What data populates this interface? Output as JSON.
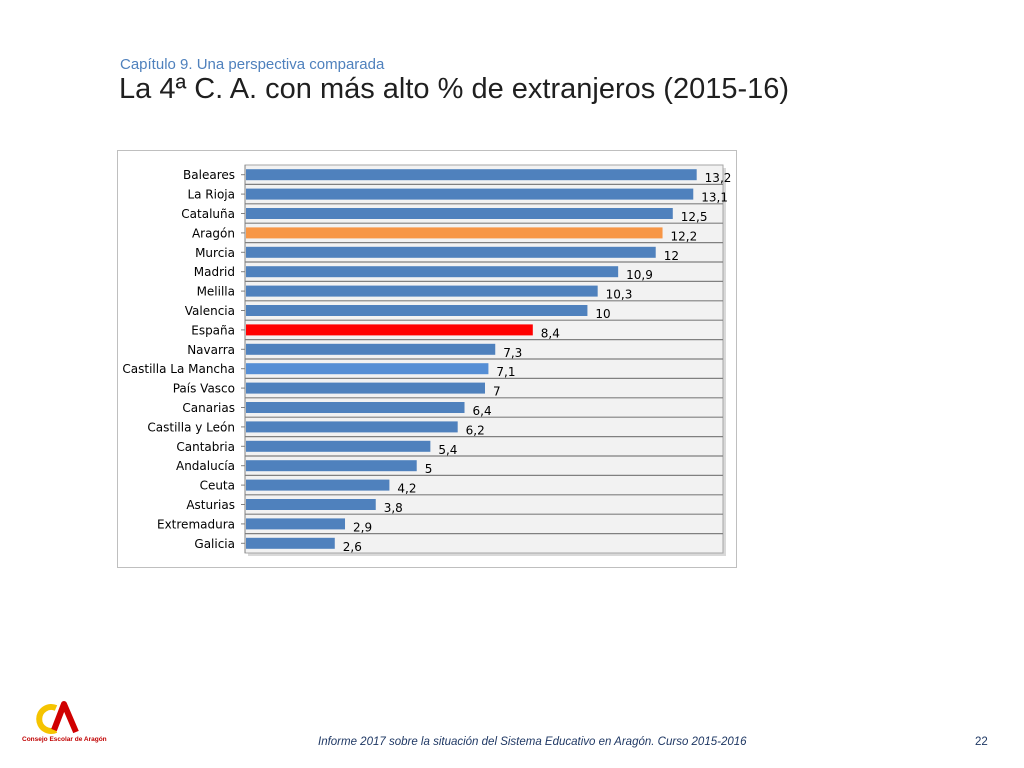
{
  "header": {
    "subtitle": "Capítulo 9. Una perspectiva comparada",
    "title": "La 4ª C. A. con más alto % de extranjeros (2015-16)"
  },
  "footer": {
    "text": "Informe 2017 sobre la situación del Sistema Educativo en Aragón. Curso 2015-2016",
    "page": "22",
    "logo_text": "Consejo Escolar de Aragón"
  },
  "colors": {
    "default_bar": "#4f81bd",
    "aragon_bar": "#f79646",
    "espana_bar": "#ff0000",
    "castilla_la_mancha_bar": "#558ed5",
    "plot_background": "#f2f2f2",
    "gridline": "#808080",
    "subtitle_color": "#4f81bd",
    "footer_color": "#1f3864"
  },
  "chart_data": {
    "type": "bar",
    "orientation": "horizontal",
    "title": "",
    "xlabel": "",
    "ylabel": "",
    "xlim": [
      0,
      14
    ],
    "grid": true,
    "legend": "none",
    "categories": [
      "Baleares",
      "La Rioja",
      "Cataluña",
      "Aragón",
      "Murcia",
      "Madrid",
      "Melilla",
      "Valencia",
      "España",
      "Navarra",
      "Castilla La Mancha",
      "País Vasco",
      "Canarias",
      "Castilla y León",
      "Cantabria",
      "Andalucía",
      "Ceuta",
      "Asturias",
      "Extremadura",
      "Galicia"
    ],
    "values": [
      13.2,
      13.1,
      12.5,
      12.2,
      12,
      10.9,
      10.3,
      10,
      8.4,
      7.3,
      7.1,
      7,
      6.4,
      6.2,
      5.4,
      5,
      4.2,
      3.8,
      2.9,
      2.6
    ],
    "value_labels": [
      "13,2",
      "13,1",
      "12,5",
      "12,2",
      "12",
      "10,9",
      "10,3",
      "10",
      "8,4",
      "7,3",
      "7,1",
      "7",
      "6,4",
      "6,2",
      "5,4",
      "5",
      "4,2",
      "3,8",
      "2,9",
      "2,6"
    ],
    "highlight": {
      "Aragón": "#f79646",
      "España": "#ff0000",
      "Castilla La Mancha": "#558ed5"
    }
  }
}
